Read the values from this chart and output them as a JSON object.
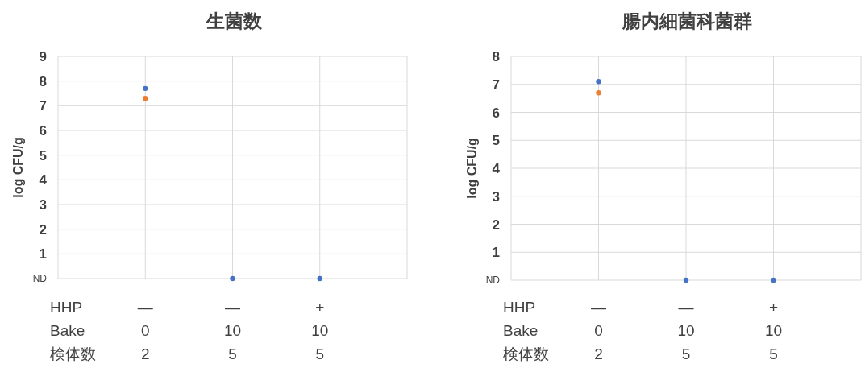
{
  "chart_data": [
    {
      "type": "scatter",
      "title": "生菌数",
      "ylabel": "log CFU/g",
      "categories": [
        "—\n0\n2",
        "—\n10\n5",
        "+\n10\n5"
      ],
      "annotations": [
        "HHP",
        "Bake",
        "検体数"
      ],
      "series": [
        {
          "color": "#4472c4",
          "values": [
            7.7,
            0,
            0
          ]
        },
        {
          "color": "#ed7d31",
          "values": [
            7.3,
            null,
            null
          ]
        }
      ],
      "ylim": [
        0,
        9
      ],
      "yticks": [
        {
          "value": 0,
          "label": "ND"
        },
        1,
        2,
        3,
        4,
        5,
        6,
        7,
        8,
        9
      ],
      "grid": true,
      "marker": "circle"
    },
    {
      "type": "scatter",
      "title": "腸内細菌科菌群",
      "ylabel": "log CFU/g",
      "categories": [
        "—\n0\n2",
        "—\n10\n5",
        "+\n10\n5"
      ],
      "annotations": [
        "HHP",
        "Bake",
        "検体数"
      ],
      "series": [
        {
          "color": "#4472c4",
          "values": [
            7.1,
            0,
            0
          ]
        },
        {
          "color": "#ed7d31",
          "values": [
            6.7,
            null,
            null
          ]
        }
      ],
      "ylim": [
        0,
        8
      ],
      "yticks": [
        {
          "value": 0,
          "label": "ND"
        },
        1,
        2,
        3,
        4,
        5,
        6,
        7,
        8
      ],
      "grid": true,
      "marker": "circle"
    }
  ]
}
